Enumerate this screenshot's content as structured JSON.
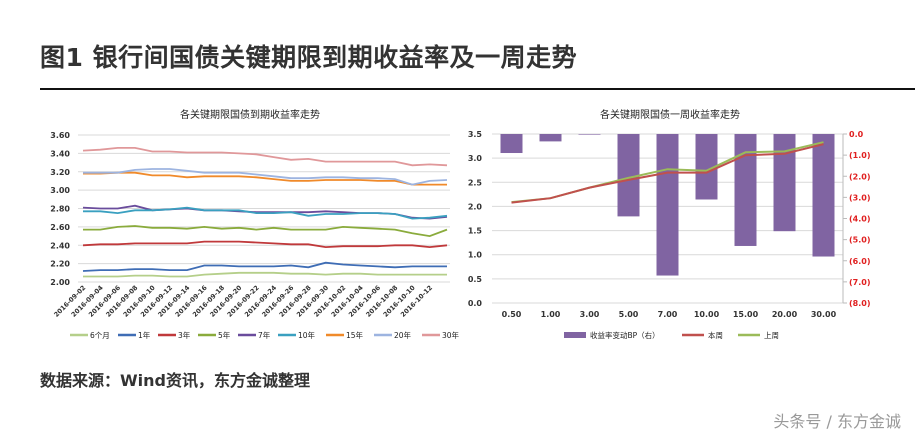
{
  "figure_title": "图1  银行间国债关键期限到期收益率及一周走势",
  "source": "数据来源：Wind资讯，东方金诚整理",
  "watermark": "头条号 / 东方金诚",
  "chart_data": [
    {
      "type": "line",
      "title": "各关键期限国债到期收益率走势",
      "ylim": [
        2.0,
        3.6
      ],
      "yticks": [
        "2.00",
        "2.20",
        "2.40",
        "2.60",
        "2.80",
        "3.00",
        "3.20",
        "3.40",
        "3.60"
      ],
      "grid": true,
      "legend": "bottom",
      "x": [
        "2016-09-02",
        "2016-09-04",
        "2016-09-06",
        "2016-09-08",
        "2016-09-10",
        "2016-09-12",
        "2016-09-14",
        "2016-09-16",
        "2016-09-18",
        "2016-09-20",
        "2016-09-22",
        "2016-09-24",
        "2016-09-26",
        "2016-09-28",
        "2016-09-30",
        "2016-10-02",
        "2016-10-04",
        "2016-10-06",
        "2016-10-08",
        "2016-10-10",
        "2016-10-12",
        "2016-10-13"
      ],
      "xlabels": [
        "2016-09-02",
        "2016-09-04",
        "2016-09-06",
        "2016-09-08",
        "2016-09-10",
        "2016-09-12",
        "2016-09-14",
        "2016-09-16",
        "2016-09-18",
        "2016-09-20",
        "2016-09-22",
        "2016-09-24",
        "2016-09-26",
        "2016-09-28",
        "2016-09-30",
        "2016-10-02",
        "2016-10-04",
        "2016-10-06",
        "2016-10-08",
        "2016-10-10",
        "2016-10-12"
      ],
      "series": [
        {
          "name": "6个月",
          "color": "#b5cf8a",
          "values": [
            2.06,
            2.06,
            2.06,
            2.07,
            2.07,
            2.06,
            2.06,
            2.08,
            2.09,
            2.1,
            2.1,
            2.1,
            2.09,
            2.09,
            2.08,
            2.09,
            2.09,
            2.08,
            2.08,
            2.08,
            2.08,
            2.08
          ]
        },
        {
          "name": "1年",
          "color": "#3f6db5",
          "values": [
            2.12,
            2.13,
            2.13,
            2.14,
            2.14,
            2.13,
            2.13,
            2.18,
            2.18,
            2.17,
            2.17,
            2.17,
            2.18,
            2.16,
            2.21,
            2.19,
            2.18,
            2.17,
            2.16,
            2.17,
            2.17,
            2.17
          ]
        },
        {
          "name": "3年",
          "color": "#c0393b",
          "values": [
            2.4,
            2.41,
            2.41,
            2.42,
            2.42,
            2.42,
            2.42,
            2.44,
            2.44,
            2.44,
            2.43,
            2.42,
            2.41,
            2.41,
            2.38,
            2.39,
            2.39,
            2.39,
            2.4,
            2.4,
            2.38,
            2.4
          ]
        },
        {
          "name": "5年",
          "color": "#8aab3c",
          "values": [
            2.57,
            2.57,
            2.6,
            2.61,
            2.59,
            2.59,
            2.58,
            2.6,
            2.58,
            2.59,
            2.57,
            2.59,
            2.57,
            2.57,
            2.57,
            2.6,
            2.59,
            2.58,
            2.57,
            2.53,
            2.5,
            2.57
          ]
        },
        {
          "name": "7年",
          "color": "#6a4c9c",
          "values": [
            2.81,
            2.8,
            2.8,
            2.83,
            2.78,
            2.79,
            2.8,
            2.78,
            2.78,
            2.77,
            2.76,
            2.76,
            2.76,
            2.76,
            2.77,
            2.76,
            2.75,
            2.75,
            2.74,
            2.7,
            2.69,
            2.71
          ]
        },
        {
          "name": "10年",
          "color": "#3aa0c0",
          "values": [
            2.77,
            2.77,
            2.75,
            2.78,
            2.78,
            2.79,
            2.81,
            2.78,
            2.78,
            2.78,
            2.75,
            2.75,
            2.76,
            2.72,
            2.74,
            2.74,
            2.75,
            2.75,
            2.74,
            2.69,
            2.7,
            2.72
          ]
        },
        {
          "name": "15年",
          "color": "#f08a2a",
          "values": [
            3.18,
            3.18,
            3.19,
            3.19,
            3.16,
            3.16,
            3.14,
            3.15,
            3.15,
            3.15,
            3.14,
            3.12,
            3.1,
            3.1,
            3.11,
            3.11,
            3.11,
            3.1,
            3.1,
            3.06,
            3.06,
            3.06
          ]
        },
        {
          "name": "20年",
          "color": "#9db4e0",
          "values": [
            3.19,
            3.19,
            3.19,
            3.22,
            3.23,
            3.23,
            3.21,
            3.19,
            3.19,
            3.19,
            3.17,
            3.15,
            3.13,
            3.13,
            3.14,
            3.14,
            3.13,
            3.13,
            3.12,
            3.06,
            3.1,
            3.11
          ]
        },
        {
          "name": "30年",
          "color": "#e0989a",
          "values": [
            3.43,
            3.44,
            3.46,
            3.46,
            3.42,
            3.42,
            3.41,
            3.41,
            3.41,
            3.4,
            3.39,
            3.36,
            3.33,
            3.34,
            3.31,
            3.31,
            3.31,
            3.31,
            3.31,
            3.27,
            3.28,
            3.27
          ]
        }
      ]
    },
    {
      "type": "bar+line",
      "title": "各关键期限国债一周收益率走势",
      "categories": [
        "0.50",
        "1.00",
        "3.00",
        "5.00",
        "7.00",
        "10.00",
        "15.00",
        "20.00",
        "30.00"
      ],
      "ylim": [
        0.0,
        3.5
      ],
      "yticks": [
        "0.0",
        "0.5",
        "1.0",
        "1.5",
        "2.0",
        "2.5",
        "3.0",
        "3.5"
      ],
      "y2lim": [
        -8.0,
        0.0
      ],
      "y2ticks": [
        "0.0",
        "(1.0)",
        "(2.0)",
        "(3.0)",
        "(4.0)",
        "(5.0)",
        "(6.0)",
        "(7.0)",
        "(8.0)"
      ],
      "y2_tick_color": "#e02020",
      "grid": true,
      "legend": "bottom",
      "bars": {
        "name": "收益率变动BP（右）",
        "color": "#8064a2",
        "axis": "right",
        "values": [
          -0.9,
          -0.35,
          -0.02,
          -3.9,
          -6.7,
          -3.1,
          -5.3,
          -4.6,
          -5.8
        ]
      },
      "series": [
        {
          "name": "本周",
          "color": "#c0504d",
          "values": [
            2.08,
            2.17,
            2.39,
            2.55,
            2.7,
            2.7,
            3.06,
            3.09,
            3.29
          ]
        },
        {
          "name": "上周",
          "color": "#9bbb59",
          "values": [
            2.09,
            2.17,
            2.39,
            2.59,
            2.77,
            2.74,
            3.12,
            3.14,
            3.33
          ]
        }
      ]
    }
  ]
}
